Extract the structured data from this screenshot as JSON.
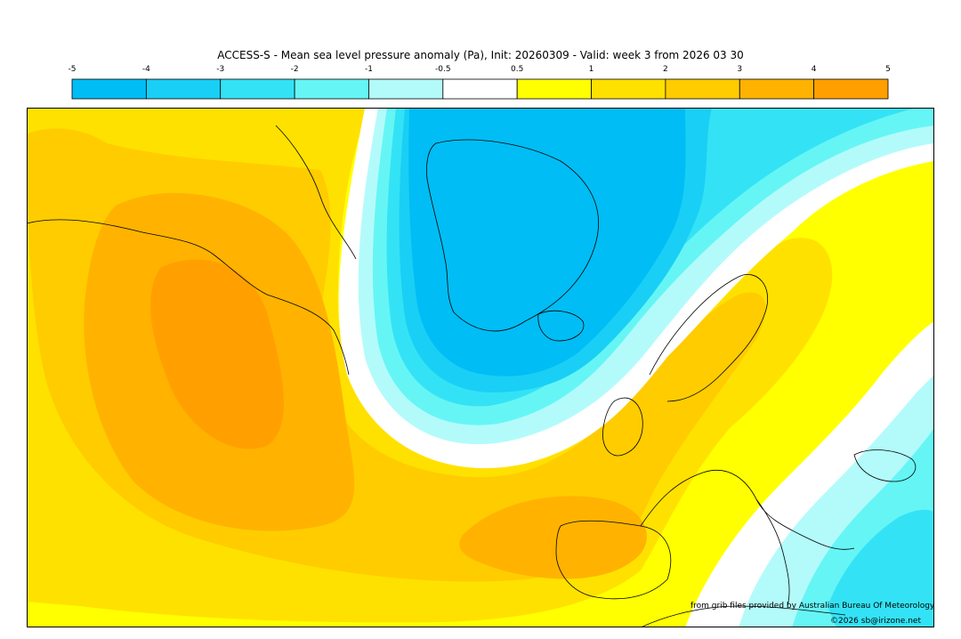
{
  "title": "ACCESS-S - Mean sea level pressure anomaly (Pa), Init: 20260309 - Valid: week 3 from 2026 03 30",
  "colorbar": {
    "tick_labels": [
      "-5",
      "-4",
      "-3",
      "-2",
      "-1",
      "-0.5",
      "0.5",
      "1",
      "2",
      "3",
      "4",
      "5"
    ],
    "colors": [
      "#00bdf5",
      "#19cff5",
      "#33e3f5",
      "#66f5f5",
      "#b3fbfb",
      "#ffffff",
      "#ffff00",
      "#ffe100",
      "#ffcc00",
      "#ffb300",
      "#ffa000"
    ]
  },
  "map": {
    "region": "North Atlantic, Greenland and Europe",
    "negative_anomaly_center": "Greenland",
    "positive_anomaly_center": "North Atlantic west of Europe"
  },
  "credits": {
    "source": "from grib files provided by Australian Bureau Of Meteorology",
    "copyright": "©2026 sb@irizone.net"
  }
}
